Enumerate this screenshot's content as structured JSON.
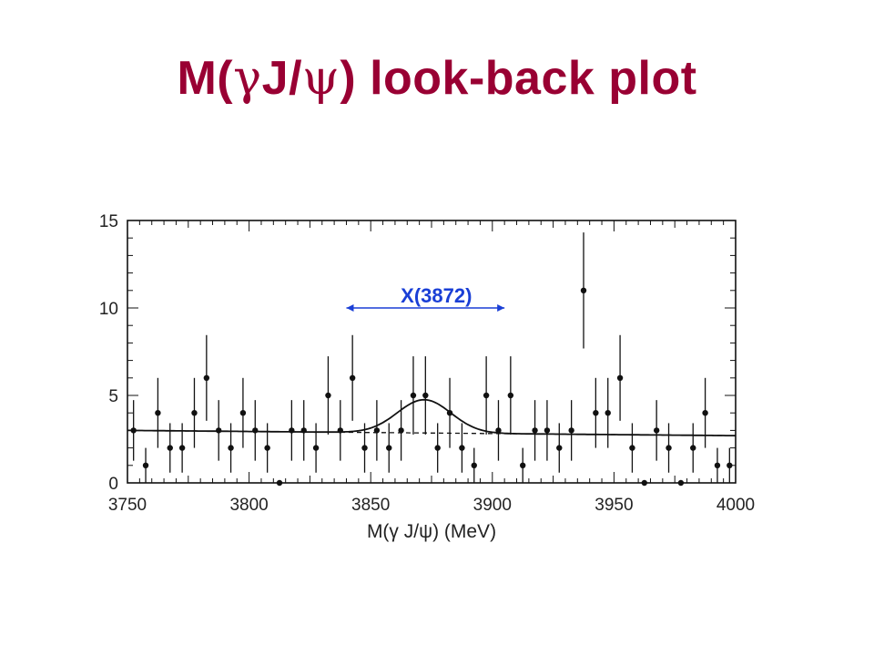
{
  "slide": {
    "title_prefix": "M(",
    "title_gamma": "γ",
    "title_mid": "J/",
    "title_psi": "ψ",
    "title_suffix": ") look-back plot"
  },
  "colors": {
    "title": "#990033",
    "annotation": "#1a3fd6",
    "data": "#111111"
  },
  "chart_data": {
    "type": "scatter",
    "xlabel": "M(γ J/ψ) (MeV)",
    "ylabel": "",
    "xlim": [
      3750,
      4000
    ],
    "ylim": [
      0,
      15
    ],
    "x_ticks": [
      3750,
      3800,
      3850,
      3900,
      3950,
      4000
    ],
    "y_ticks": [
      0,
      5,
      10,
      15
    ],
    "grid": false,
    "annotation": {
      "text": "X(3872)",
      "x_range": [
        3840,
        3905
      ],
      "y": 10
    },
    "series": [
      {
        "kind": "points_with_errors",
        "x": [
          3750,
          3755,
          3760,
          3765,
          3770,
          3775,
          3780,
          3785,
          3790,
          3795,
          3800,
          3805,
          3810,
          3815,
          3820,
          3825,
          3830,
          3835,
          3840,
          3845,
          3850,
          3855,
          3860,
          3865,
          3870,
          3875,
          3880,
          3885,
          3890,
          3895,
          3900,
          3905,
          3910,
          3915,
          3920,
          3925,
          3930,
          3935,
          3940,
          3945,
          3950,
          3955,
          3960,
          3965,
          3970,
          3975,
          3980,
          3985,
          3990,
          3995
        ],
        "y": [
          3,
          1,
          4,
          2,
          2,
          4,
          6,
          3,
          2,
          4,
          3,
          2,
          0,
          3,
          3,
          2,
          5,
          3,
          6,
          2,
          3,
          2,
          3,
          5,
          5,
          2,
          4,
          2,
          1,
          5,
          3,
          5,
          1,
          3,
          3,
          2,
          3,
          11,
          4,
          4,
          6,
          2,
          0,
          3,
          2,
          0,
          2,
          4,
          1,
          1
        ]
      },
      {
        "kind": "fit",
        "model": "gaussian_on_linear_background",
        "background": [
          3.0,
          2.7
        ],
        "peak_mean": 3872,
        "peak_sigma": 11,
        "peak_height": 1.9
      }
    ]
  }
}
